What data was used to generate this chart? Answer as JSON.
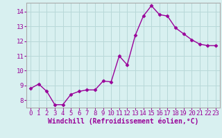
{
  "x": [
    0,
    1,
    2,
    3,
    4,
    5,
    6,
    7,
    8,
    9,
    10,
    11,
    12,
    13,
    14,
    15,
    16,
    17,
    18,
    19,
    20,
    21,
    22,
    23
  ],
  "y": [
    8.8,
    9.1,
    8.6,
    7.7,
    7.7,
    8.4,
    8.6,
    8.7,
    8.7,
    9.3,
    9.25,
    11.0,
    10.4,
    12.4,
    13.7,
    14.4,
    13.8,
    13.7,
    12.9,
    12.5,
    12.1,
    11.8,
    11.7,
    11.7
  ],
  "line_color": "#990099",
  "marker": "D",
  "markersize": 2.5,
  "linewidth": 1.0,
  "xlabel": "Windchill (Refroidissement éolien,°C)",
  "xlabel_fontsize": 7,
  "ylim": [
    7.5,
    14.6
  ],
  "xlim": [
    -0.5,
    23.5
  ],
  "yticks": [
    8,
    9,
    10,
    11,
    12,
    13,
    14
  ],
  "xticks": [
    0,
    1,
    2,
    3,
    4,
    5,
    6,
    7,
    8,
    9,
    10,
    11,
    12,
    13,
    14,
    15,
    16,
    17,
    18,
    19,
    20,
    21,
    22,
    23
  ],
  "bg_color": "#d8f0f0",
  "grid_color": "#b8d8d8",
  "tick_fontsize": 6.5,
  "fig_bg": "#d8f0f0",
  "spine_color": "#aaaaaa"
}
